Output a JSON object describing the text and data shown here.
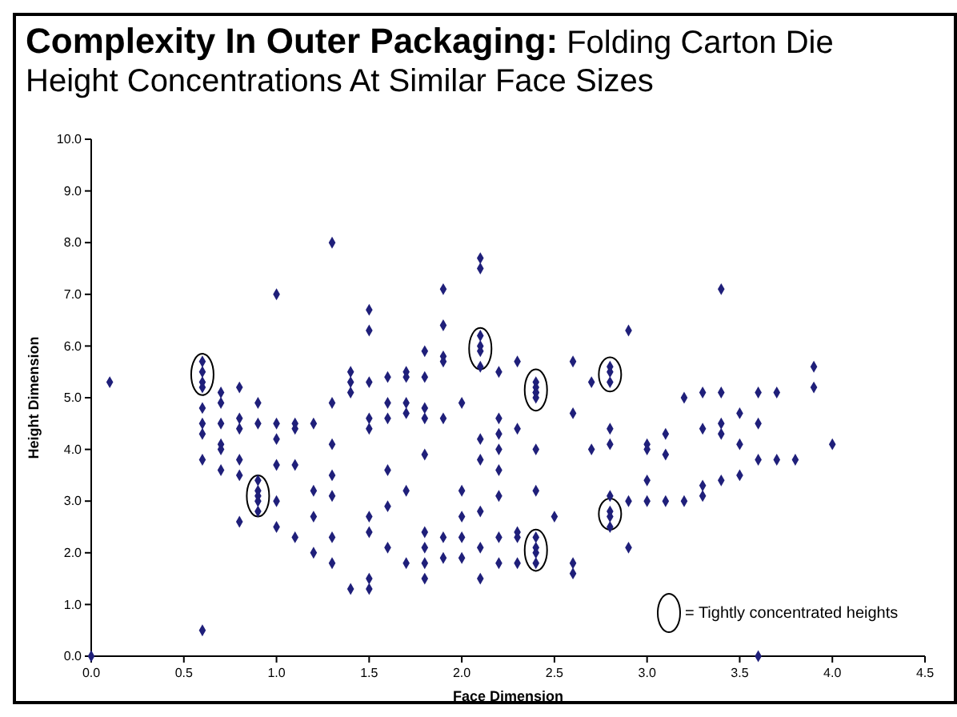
{
  "chart_data": {
    "type": "scatter",
    "title": "Complexity In Outer Packaging:",
    "subtitle": "Folding Carton Die Height Concentrations At Similar Face Sizes",
    "xlabel": "Face Dimension",
    "ylabel": "Height Dimension",
    "annotations": [
      "= Tightly concentrated heights"
    ],
    "xlim": [
      0,
      4.5
    ],
    "xticks": [
      {
        "value": 0,
        "label": "0.0"
      },
      {
        "value": 0.5,
        "label": "0.5"
      },
      {
        "value": 1,
        "label": "1.0"
      },
      {
        "value": 1.5,
        "label": "1.5"
      },
      {
        "value": 2,
        "label": "2.0"
      },
      {
        "value": 2.5,
        "label": "2.5"
      },
      {
        "value": 3,
        "label": "3.0"
      },
      {
        "value": 3.5,
        "label": "3.5"
      },
      {
        "value": 4,
        "label": "4.0"
      },
      {
        "value": 4.5,
        "label": "4.5"
      }
    ],
    "ylim": [
      0,
      10
    ],
    "yticks": [
      {
        "value": 0,
        "label": "0.0"
      },
      {
        "value": 1,
        "label": "1.0"
      },
      {
        "value": 2,
        "label": "2.0"
      },
      {
        "value": 3,
        "label": "3.0"
      },
      {
        "value": 4,
        "label": "4.0"
      },
      {
        "value": 5,
        "label": "5.0"
      },
      {
        "value": 6,
        "label": "6.0"
      },
      {
        "value": 7,
        "label": "7.0"
      },
      {
        "value": 8,
        "label": "8.0"
      },
      {
        "value": 9,
        "label": "9.0"
      },
      {
        "value": 10,
        "label": "10.0"
      }
    ],
    "grid": false,
    "marker": "diamond",
    "series": [
      {
        "color": "#1f1f7a",
        "x": [
          0,
          0.1,
          0.6,
          0.6,
          0.6,
          0.6,
          0.6,
          0.6,
          0.6,
          0.6,
          0.6,
          0.7,
          0.7,
          0.7,
          0.7,
          0.7,
          0.7,
          0.8,
          0.8,
          0.8,
          0.8,
          0.8,
          0.8,
          0.9,
          0.9,
          0.9,
          0.9,
          0.9,
          0.9,
          0.9,
          1,
          1,
          1,
          1,
          1,
          1,
          1.1,
          1.1,
          1.1,
          1.1,
          1.2,
          1.2,
          1.2,
          1.2,
          1.3,
          1.3,
          1.3,
          1.3,
          1.3,
          1.3,
          1.3,
          1.4,
          1.4,
          1.4,
          1.4,
          1.5,
          1.5,
          1.5,
          1.5,
          1.5,
          1.5,
          1.5,
          1.5,
          1.5,
          1.6,
          1.6,
          1.6,
          1.6,
          1.6,
          1.6,
          1.7,
          1.7,
          1.7,
          1.7,
          1.7,
          1.7,
          1.8,
          1.8,
          1.8,
          1.8,
          1.8,
          1.8,
          1.8,
          1.8,
          1.8,
          1.9,
          1.9,
          1.9,
          1.9,
          1.9,
          1.9,
          1.9,
          2,
          2,
          2,
          2,
          2,
          2.1,
          2.1,
          2.1,
          2.1,
          2.1,
          2.1,
          2.1,
          2.1,
          2.1,
          2.1,
          2.1,
          2.2,
          2.2,
          2.2,
          2.2,
          2.2,
          2.2,
          2.2,
          2.2,
          2.3,
          2.3,
          2.3,
          2.3,
          2.3,
          2.4,
          2.4,
          2.4,
          2.4,
          2.4,
          2.4,
          2.4,
          2.4,
          2.4,
          2.4,
          2.4,
          2.5,
          2.6,
          2.6,
          2.6,
          2.6,
          2.7,
          2.7,
          2.8,
          2.8,
          2.8,
          2.8,
          2.8,
          2.8,
          2.8,
          2.8,
          2.8,
          2.9,
          2.9,
          2.9,
          3,
          3,
          3,
          3,
          3.1,
          3.1,
          3.1,
          3.2,
          3.2,
          3.3,
          3.3,
          3.3,
          3.3,
          3.4,
          3.4,
          3.4,
          3.4,
          3.4,
          3.5,
          3.5,
          3.5,
          3.6,
          3.6,
          3.6,
          3.6,
          3.7,
          3.7,
          3.8,
          3.9,
          3.9,
          4
        ],
        "values": [
          0,
          5.3,
          5.7,
          5.5,
          5.3,
          5.2,
          4.8,
          4.5,
          4.3,
          3.8,
          0.5,
          5.1,
          4.9,
          4.5,
          4.1,
          4,
          3.6,
          5.2,
          4.6,
          4.4,
          3.8,
          3.5,
          2.6,
          4.9,
          4.5,
          3.4,
          3.2,
          3.1,
          3,
          2.8,
          7,
          4.5,
          4.2,
          3.7,
          3,
          2.5,
          4.5,
          4.4,
          3.7,
          2.3,
          4.5,
          3.2,
          2.7,
          2,
          8,
          4.9,
          4.1,
          3.5,
          3.1,
          2.3,
          1.8,
          5.5,
          5.3,
          5.1,
          1.3,
          6.7,
          6.3,
          5.3,
          4.6,
          4.4,
          2.7,
          2.4,
          1.5,
          1.3,
          5.4,
          4.9,
          4.6,
          3.6,
          2.9,
          2.1,
          5.5,
          5.4,
          4.9,
          4.7,
          3.2,
          1.8,
          5.9,
          5.4,
          4.8,
          4.6,
          3.9,
          2.4,
          2.1,
          1.8,
          1.5,
          7.1,
          6.4,
          5.8,
          5.7,
          4.6,
          2.3,
          1.9,
          4.9,
          3.2,
          2.7,
          2.3,
          1.9,
          7.7,
          7.5,
          6.2,
          6,
          5.9,
          5.6,
          4.2,
          3.8,
          2.8,
          2.1,
          1.5,
          5.5,
          4.6,
          4.3,
          4,
          3.6,
          3.1,
          2.3,
          1.8,
          5.7,
          4.4,
          2.4,
          2.3,
          1.8,
          5.3,
          5.2,
          5.1,
          5.1,
          5,
          4,
          3.2,
          2.3,
          2.1,
          2,
          1.8,
          2.7,
          5.7,
          4.7,
          1.8,
          1.6,
          5.3,
          4,
          5.6,
          5.5,
          5.3,
          4.4,
          4.1,
          3.1,
          2.8,
          2.7,
          2.5,
          6.3,
          3,
          2.1,
          4.1,
          4,
          3.4,
          3,
          4.3,
          3.9,
          3,
          5,
          3,
          5.1,
          4.4,
          3.3,
          3.1,
          7.1,
          5.1,
          4.5,
          4.3,
          3.4,
          4.7,
          4.1,
          3.5,
          5.1,
          4.5,
          3.8,
          0,
          5.1,
          3.8,
          3.8,
          5.6,
          5.2,
          4.1
        ]
      }
    ]
  }
}
